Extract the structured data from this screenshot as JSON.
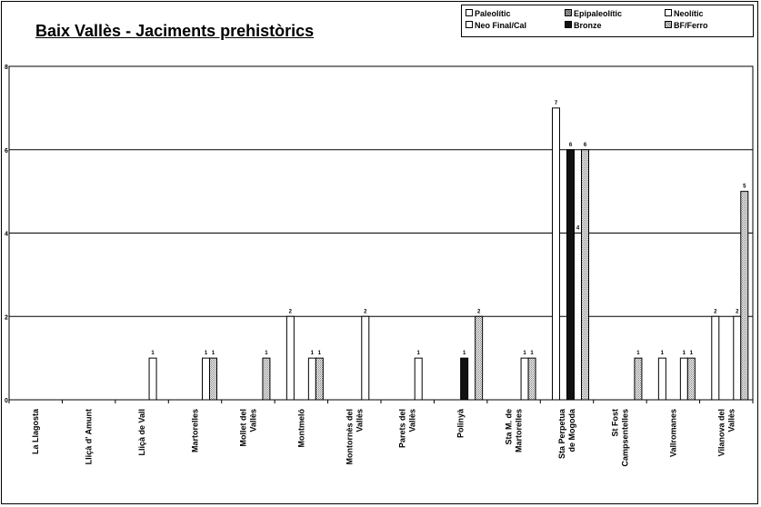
{
  "chart_data": {
    "type": "bar",
    "title": "Baix Vallès - Jaciments prehistòrics",
    "xlabel": "",
    "ylabel": "",
    "ylim": [
      0,
      8
    ],
    "yticks": [
      "0",
      "2",
      "4",
      "6",
      "8"
    ],
    "grid": true,
    "legend_position": "top-right",
    "categories": [
      "La Llagosta",
      "Lliçà d' Amunt",
      "Lliçà de Vall",
      "Martorelles",
      "Mollet del Vallès",
      "Montmeló",
      "Montornès del Vallès",
      "Parets del Vallès",
      "Polinyà",
      "Sta M. de Martorelles",
      "Sta Perpetua de Mogoda",
      "St Fost Campsentelles",
      "Vallromanes",
      "Vilanova del Vallès"
    ],
    "series": [
      {
        "name": "Paleolític",
        "color": "#ffffff",
        "values": [
          0,
          0,
          0,
          0,
          0,
          0,
          0,
          0,
          0,
          0,
          0,
          0,
          0,
          0
        ]
      },
      {
        "name": "Neo Final/Cal",
        "color": "#ffffff",
        "values": [
          0,
          0,
          0,
          0,
          0,
          2,
          0,
          0,
          0,
          0,
          7,
          0,
          1,
          2
        ]
      },
      {
        "name": "Epipaleolític",
        "color": "#8c8c8c",
        "values": [
          0,
          0,
          0,
          0,
          0,
          0,
          0,
          0,
          0,
          0,
          0,
          0,
          0,
          0
        ]
      },
      {
        "name": "Bronze",
        "color": "#111111",
        "values": [
          0,
          0,
          0,
          0,
          0,
          0,
          0,
          0,
          1,
          0,
          6,
          0,
          0,
          0
        ]
      },
      {
        "name": "Neolític",
        "color": "#ffffff",
        "values": [
          0,
          0,
          1,
          1,
          0,
          1,
          2,
          1,
          0,
          1,
          4,
          0,
          1,
          2
        ]
      },
      {
        "name": "BF/Ferro",
        "color": "#c8c8c8",
        "values": [
          0,
          0,
          0,
          1,
          1,
          1,
          0,
          0,
          2,
          1,
          6,
          1,
          1,
          5
        ]
      }
    ],
    "legend_order": [
      "Paleolític",
      "Epipaleolític",
      "Neolític",
      "Neo Final/Cal",
      "Bronze",
      "BF/Ferro"
    ]
  }
}
